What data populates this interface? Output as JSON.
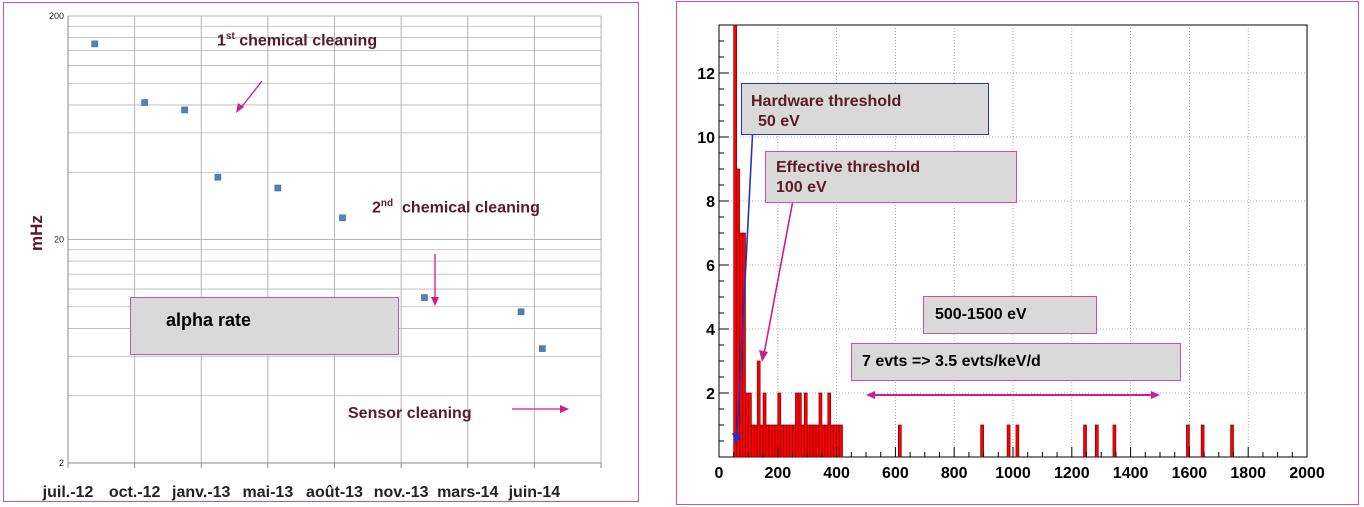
{
  "colors": {
    "frame": "#d24fa6",
    "annotation_text": "#5a1a28",
    "arrow": "#cc1f8a",
    "blue_arrow": "#2233cc",
    "marker": "#4f81bd",
    "histogram": "#ff0000",
    "box_fill": "#d9d9d9"
  },
  "left_chart": {
    "ylabel": "mHz",
    "annotations": {
      "first_cleaning_num": "1",
      "first_cleaning_sup": "st",
      "first_cleaning_rest": " chemical cleaning",
      "second_cleaning_num": "2",
      "second_cleaning_sup": "nd",
      "second_cleaning_rest": "  chemical cleaning",
      "sensor_cleaning": "Sensor cleaning",
      "legend_box": "alpha rate"
    }
  },
  "right_chart": {
    "annotations": {
      "hardware_threshold_line1": "Hardware threshold",
      "hardware_threshold_line2": "50 eV",
      "effective_threshold_line1": "Effective threshold",
      "effective_threshold_line2": "100 eV",
      "range_box": "500-1500 eV",
      "rate_box": "7 evts => 3.5 evts/keV/d"
    }
  },
  "chart_data": [
    {
      "type": "scatter",
      "ylabel": "mHz",
      "xlabel": "",
      "yscale": "log",
      "ylim": [
        2,
        200
      ],
      "y_ticks": [
        2,
        20,
        200
      ],
      "x_tick_labels": [
        "juil.-12",
        "oct.-12",
        "janv.-13",
        "mai-13",
        "août-13",
        "nov.-13",
        "mars-14",
        "juin-14"
      ],
      "grid": true,
      "series": [
        {
          "x": [
            0.4,
            1.15,
            1.75,
            2.25,
            3.15,
            4.12,
            5.35,
            6.8,
            7.12
          ],
          "values": [
            150,
            82,
            76,
            38,
            34,
            25,
            11,
            9.5,
            6.5
          ]
        }
      ]
    },
    {
      "type": "bar",
      "xlabel": "",
      "ylabel": "",
      "xlim": [
        0,
        2000
      ],
      "ylim": [
        0,
        13.5
      ],
      "x_ticks": [
        0,
        200,
        400,
        600,
        800,
        1000,
        1200,
        1400,
        1600,
        1800,
        2000
      ],
      "y_ticks": [
        2,
        4,
        6,
        8,
        10,
        12
      ],
      "grid": true,
      "bin_width": 10,
      "bin_starts": [
        50,
        60,
        70,
        80,
        90,
        100,
        110,
        120,
        130,
        140,
        150,
        160,
        170,
        180,
        190,
        200,
        210,
        220,
        230,
        240,
        250,
        260,
        270,
        280,
        290,
        300,
        310,
        320,
        330,
        340,
        350,
        360,
        370,
        380,
        390,
        400,
        410,
        610,
        890,
        980,
        1010,
        1240,
        1280,
        1340,
        1590,
        1640,
        1740
      ],
      "values": [
        14,
        9,
        7,
        7,
        2,
        2,
        1,
        1,
        3,
        1,
        2,
        1,
        1,
        1,
        1,
        2,
        1,
        1,
        1,
        1,
        1,
        2,
        2,
        1,
        2,
        1,
        1,
        1,
        1,
        2,
        1,
        1,
        2,
        1,
        1,
        1,
        1,
        1,
        1,
        1,
        1,
        1,
        1,
        1,
        1,
        1,
        1
      ]
    }
  ]
}
